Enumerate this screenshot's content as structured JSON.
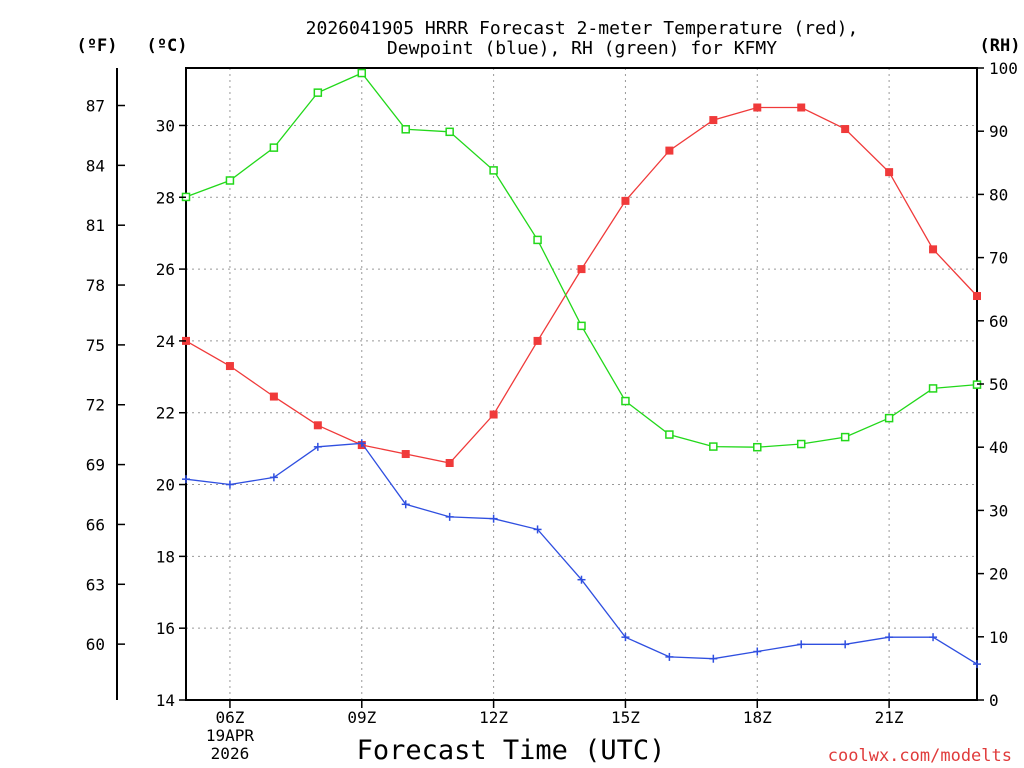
{
  "colors": {
    "temperature": "#f03a3a",
    "dewpoint": "#2f4fe0",
    "rh": "#22d81a",
    "credit": "#e03b3b"
  },
  "chart_data": {
    "type": "line",
    "title_line1": "2026041905 HRRR Forecast 2-meter Temperature (red),",
    "title_line2": "Dewpoint (blue), RH (green) for KFMY",
    "xlabel": "Forecast Time (UTC)",
    "credit": "coolwx.com/modelts",
    "unit_f": "(ºF)",
    "unit_c": "(ºC)",
    "unit_rh": "(RH)",
    "x_hours": [
      5,
      6,
      7,
      8,
      9,
      10,
      11,
      12,
      13,
      14,
      15,
      16,
      17,
      18,
      19,
      20,
      21,
      22,
      23
    ],
    "xlim": [
      5,
      23
    ],
    "x_ticks": [
      {
        "hour": 6,
        "label": "06Z",
        "sub1": "19APR",
        "sub2": "2026"
      },
      {
        "hour": 9,
        "label": "09Z"
      },
      {
        "hour": 12,
        "label": "12Z"
      },
      {
        "hour": 15,
        "label": "15Z"
      },
      {
        "hour": 18,
        "label": "18Z"
      },
      {
        "hour": 21,
        "label": "21Z"
      }
    ],
    "y_celsius": {
      "ylim": [
        14,
        31.6
      ],
      "ticks": [
        14,
        16,
        18,
        20,
        22,
        24,
        26,
        28,
        30
      ]
    },
    "y_fahrenheit_ticks": [
      60,
      63,
      66,
      69,
      72,
      75,
      78,
      81,
      84,
      87
    ],
    "y_rh": {
      "ylim": [
        0,
        100
      ],
      "ticks": [
        0,
        10,
        20,
        30,
        40,
        50,
        60,
        70,
        80,
        90,
        100
      ]
    },
    "series": [
      {
        "name": "2-meter Temperature",
        "axis": "celsius",
        "marker": "filled-square",
        "values": [
          24.0,
          23.3,
          22.45,
          21.65,
          21.1,
          20.85,
          20.6,
          21.95,
          24.0,
          26.0,
          27.9,
          29.3,
          30.15,
          30.5,
          30.5,
          29.9,
          28.7,
          26.55,
          25.25
        ]
      },
      {
        "name": "Dewpoint",
        "axis": "celsius",
        "marker": "plus",
        "values": [
          20.15,
          20.0,
          20.2,
          21.05,
          21.15,
          19.45,
          19.1,
          19.05,
          18.75,
          17.35,
          15.75,
          15.2,
          15.15,
          15.35,
          15.55,
          15.55,
          15.75,
          15.75,
          15.0
        ]
      },
      {
        "name": "RH",
        "axis": "rh",
        "marker": "open-square",
        "values": [
          79.6,
          82.2,
          87.4,
          96.1,
          99.2,
          90.3,
          89.9,
          83.8,
          72.8,
          59.2,
          47.3,
          42.0,
          40.1,
          40.0,
          40.5,
          41.6,
          44.6,
          49.3,
          49.9
        ]
      }
    ]
  }
}
